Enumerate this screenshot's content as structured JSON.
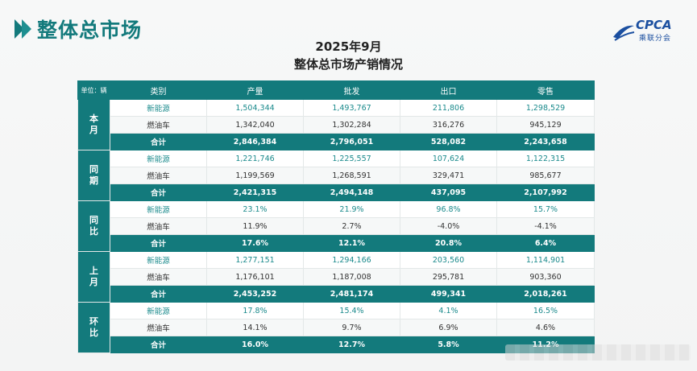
{
  "page": {
    "title": "整体总市场",
    "logo_text": "CPCA",
    "logo_sub": "乘联分会"
  },
  "table_title": {
    "line1": "2025年9月",
    "line2": "整体总市场产销情况"
  },
  "colors": {
    "accent": "#137a7c",
    "accent_text": "#1a8a8c",
    "logo_blue": "#1b4fa0"
  },
  "table": {
    "headers": {
      "unit": "单位：辆",
      "category": "类别",
      "production": "产量",
      "wholesale": "批发",
      "export": "出口",
      "retail": "零售"
    },
    "groups": [
      {
        "label": "本月",
        "rows": [
          {
            "category": "新能源",
            "production": "1,504,344",
            "wholesale": "1,493,767",
            "export": "211,806",
            "retail": "1,298,529"
          },
          {
            "category": "燃油车",
            "production": "1,342,040",
            "wholesale": "1,302,284",
            "export": "316,276",
            "retail": "945,129"
          },
          {
            "category": "合计",
            "production": "2,846,384",
            "wholesale": "2,796,051",
            "export": "528,082",
            "retail": "2,243,658"
          }
        ]
      },
      {
        "label": "同期",
        "rows": [
          {
            "category": "新能源",
            "production": "1,221,746",
            "wholesale": "1,225,557",
            "export": "107,624",
            "retail": "1,122,315"
          },
          {
            "category": "燃油车",
            "production": "1,199,569",
            "wholesale": "1,268,591",
            "export": "329,471",
            "retail": "985,677"
          },
          {
            "category": "合计",
            "production": "2,421,315",
            "wholesale": "2,494,148",
            "export": "437,095",
            "retail": "2,107,992"
          }
        ]
      },
      {
        "label": "同比",
        "rows": [
          {
            "category": "新能源",
            "production": "23.1%",
            "wholesale": "21.9%",
            "export": "96.8%",
            "retail": "15.7%"
          },
          {
            "category": "燃油车",
            "production": "11.9%",
            "wholesale": "2.7%",
            "export": "-4.0%",
            "retail": "-4.1%"
          },
          {
            "category": "合计",
            "production": "17.6%",
            "wholesale": "12.1%",
            "export": "20.8%",
            "retail": "6.4%"
          }
        ]
      },
      {
        "label": "上月",
        "rows": [
          {
            "category": "新能源",
            "production": "1,277,151",
            "wholesale": "1,294,166",
            "export": "203,560",
            "retail": "1,114,901"
          },
          {
            "category": "燃油车",
            "production": "1,176,101",
            "wholesale": "1,187,008",
            "export": "295,781",
            "retail": "903,360"
          },
          {
            "category": "合计",
            "production": "2,453,252",
            "wholesale": "2,481,174",
            "export": "499,341",
            "retail": "2,018,261"
          }
        ]
      },
      {
        "label": "环比",
        "rows": [
          {
            "category": "新能源",
            "production": "17.8%",
            "wholesale": "15.4%",
            "export": "4.1%",
            "retail": "16.5%"
          },
          {
            "category": "燃油车",
            "production": "14.1%",
            "wholesale": "9.7%",
            "export": "6.9%",
            "retail": "4.6%"
          },
          {
            "category": "合计",
            "production": "16.0%",
            "wholesale": "12.7%",
            "export": "5.8%",
            "retail": "11.2%"
          }
        ]
      }
    ]
  }
}
